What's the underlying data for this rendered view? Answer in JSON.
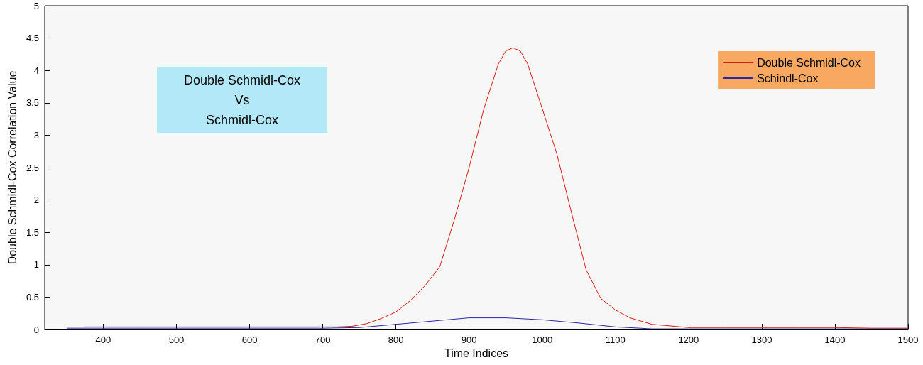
{
  "chart_data": {
    "type": "line",
    "xlabel": "Time Indices",
    "ylabel": "Double Schmidl-Cox Correlation Value",
    "annotations": [
      "Double Schmidl-Cox\nVs\nSchmidl-Cox"
    ],
    "xlim": [
      320,
      1500
    ],
    "xticks": [
      400,
      500,
      600,
      700,
      800,
      900,
      1000,
      1100,
      1200,
      1300,
      1400,
      1500
    ],
    "ylim": [
      0,
      5
    ],
    "yticks": [
      0,
      0.5,
      1,
      1.5,
      2,
      2.5,
      3,
      3.5,
      4,
      4.5,
      5
    ],
    "grid": false,
    "legend": "top right",
    "marker": "none",
    "line_style": "solid",
    "series": [
      {
        "name": "Double Schmidl-Cox",
        "color": "#e01818",
        "x": [
          375,
          400,
          450,
          500,
          550,
          600,
          650,
          700,
          720,
          740,
          760,
          780,
          800,
          820,
          840,
          860,
          880,
          900,
          920,
          940,
          950,
          960,
          970,
          980,
          1000,
          1020,
          1040,
          1060,
          1080,
          1100,
          1120,
          1150,
          1200,
          1250,
          1300,
          1350,
          1400,
          1450,
          1500
        ],
        "values": [
          0.04,
          0.04,
          0.04,
          0.04,
          0.04,
          0.04,
          0.04,
          0.04,
          0.04,
          0.05,
          0.09,
          0.17,
          0.27,
          0.45,
          0.68,
          0.97,
          1.7,
          2.5,
          3.4,
          4.1,
          4.3,
          4.35,
          4.3,
          4.1,
          3.41,
          2.71,
          1.8,
          0.92,
          0.48,
          0.3,
          0.18,
          0.08,
          0.03,
          0.03,
          0.03,
          0.03,
          0.03,
          0.02,
          0.02
        ]
      },
      {
        "name": "Schindl-Cox",
        "color": "#2a2aa0",
        "x": [
          350,
          400,
          500,
          600,
          700,
          750,
          800,
          850,
          900,
          950,
          1000,
          1050,
          1100,
          1150,
          1200,
          1300,
          1400,
          1500
        ],
        "values": [
          0.02,
          0.02,
          0.02,
          0.02,
          0.02,
          0.03,
          0.08,
          0.13,
          0.18,
          0.18,
          0.15,
          0.1,
          0.04,
          0.01,
          0.01,
          0.01,
          0.01,
          0.01
        ]
      }
    ]
  }
}
